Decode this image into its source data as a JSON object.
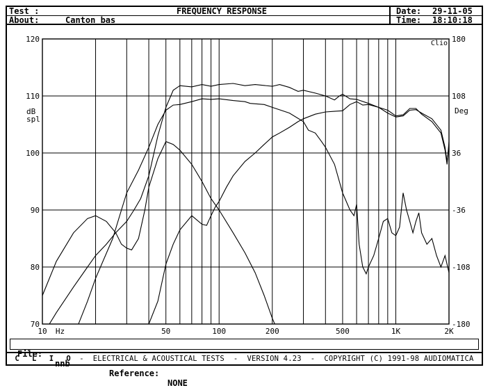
{
  "header": {
    "test_label": "Test :",
    "title": "FREQUENCY RESPONSE",
    "date_label": "Date:",
    "date_value": "29-11-05",
    "about_label": "About:",
    "about_value": "Canton bas",
    "time_label": "Time:",
    "time_value": "18:10:18"
  },
  "file_line": {
    "file_label": "File:",
    "file_value": "nnb",
    "reference_label": "Reference:",
    "reference_value": "NONE"
  },
  "footer": {
    "brand": "C L I O",
    "text": "-  ELECTRICAL & ACOUSTICAL TESTS  -  VERSION 4.23  -  COPYRIGHT (C) 1991-98 AUDIOMATICA"
  },
  "chart_data": {
    "type": "line",
    "corner_label": "Clio",
    "xscale": "log",
    "xlim": [
      10,
      2000
    ],
    "x_ticks": [
      {
        "value": 10,
        "label": "10"
      },
      {
        "value": 12.6,
        "label": "Hz"
      },
      {
        "value": 50,
        "label": "50"
      },
      {
        "value": 100,
        "label": "100"
      },
      {
        "value": 200,
        "label": "200"
      },
      {
        "value": 500,
        "label": "500"
      },
      {
        "value": 1000,
        "label": "1K"
      },
      {
        "value": 2000,
        "label": "2K"
      }
    ],
    "x_gridlines": [
      20,
      30,
      40,
      50,
      60,
      70,
      80,
      90,
      100,
      200,
      300,
      400,
      500,
      600,
      700,
      800,
      900,
      1000,
      2000
    ],
    "ylim": [
      70,
      120
    ],
    "y_ticks": [
      70,
      80,
      90,
      100,
      110,
      120
    ],
    "ylabel": "dB spl",
    "y2lim": [
      -180,
      180
    ],
    "y2_ticks": [
      -180,
      -108,
      -36,
      36,
      108,
      180
    ],
    "y2label": "Deg",
    "grid": true,
    "series": [
      {
        "points": [
          [
            10,
            68
          ],
          [
            12,
            72
          ],
          [
            15,
            76.5
          ],
          [
            18,
            80
          ],
          [
            20,
            82
          ],
          [
            23,
            84
          ],
          [
            26,
            86
          ],
          [
            30,
            88
          ],
          [
            33,
            90
          ],
          [
            36,
            92
          ],
          [
            40,
            96
          ],
          [
            45,
            103
          ],
          [
            50,
            108
          ],
          [
            55,
            111
          ],
          [
            60,
            111.8
          ],
          [
            70,
            111.6
          ],
          [
            80,
            112
          ],
          [
            90,
            111.7
          ],
          [
            100,
            112
          ],
          [
            120,
            112.2
          ],
          [
            140,
            111.8
          ],
          [
            160,
            112
          ],
          [
            200,
            111.7
          ],
          [
            220,
            112
          ],
          [
            250,
            111.5
          ],
          [
            280,
            110.8
          ],
          [
            300,
            111
          ],
          [
            350,
            110.5
          ],
          [
            400,
            110
          ],
          [
            450,
            109.3
          ],
          [
            480,
            110
          ],
          [
            500,
            110.3
          ],
          [
            550,
            109.5
          ],
          [
            600,
            109.4
          ],
          [
            700,
            108.7
          ],
          [
            800,
            108
          ],
          [
            900,
            107
          ],
          [
            1000,
            106.3
          ],
          [
            1100,
            106.5
          ],
          [
            1200,
            107.5
          ],
          [
            1300,
            107.6
          ],
          [
            1400,
            107
          ],
          [
            1600,
            106
          ],
          [
            1800,
            104
          ],
          [
            1900,
            101
          ],
          [
            1950,
            98.5
          ],
          [
            2000,
            101
          ]
        ]
      },
      {
        "points": [
          [
            12,
            60
          ],
          [
            14,
            64
          ],
          [
            16,
            70
          ],
          [
            18,
            74
          ],
          [
            20,
            78
          ],
          [
            25,
            85
          ],
          [
            28,
            90
          ],
          [
            30,
            93
          ],
          [
            35,
            97
          ],
          [
            40,
            101
          ],
          [
            45,
            105
          ],
          [
            50,
            107.5
          ],
          [
            55,
            108.4
          ],
          [
            60,
            108.5
          ],
          [
            70,
            109
          ],
          [
            80,
            109.5
          ],
          [
            90,
            109.4
          ],
          [
            100,
            109.5
          ],
          [
            120,
            109.2
          ],
          [
            140,
            109
          ],
          [
            150,
            108.7
          ],
          [
            180,
            108.5
          ],
          [
            200,
            108
          ],
          [
            250,
            107
          ],
          [
            300,
            105.5
          ],
          [
            320,
            104
          ],
          [
            350,
            103.5
          ],
          [
            380,
            102
          ],
          [
            400,
            101
          ],
          [
            450,
            98
          ],
          [
            500,
            93
          ],
          [
            550,
            90
          ],
          [
            580,
            89
          ],
          [
            600,
            91
          ],
          [
            620,
            84
          ],
          [
            650,
            80
          ],
          [
            680,
            78.8
          ],
          [
            700,
            80
          ],
          [
            750,
            82
          ],
          [
            800,
            85
          ],
          [
            850,
            88
          ],
          [
            900,
            88.5
          ],
          [
            950,
            86
          ],
          [
            1000,
            85.5
          ],
          [
            1050,
            87
          ],
          [
            1100,
            93
          ],
          [
            1150,
            90
          ],
          [
            1200,
            88
          ],
          [
            1250,
            86
          ],
          [
            1300,
            88
          ],
          [
            1350,
            89.5
          ],
          [
            1400,
            86
          ],
          [
            1500,
            84
          ],
          [
            1600,
            85
          ],
          [
            1700,
            82
          ],
          [
            1800,
            80
          ],
          [
            1900,
            82
          ],
          [
            2000,
            79
          ]
        ]
      },
      {
        "points": [
          [
            10,
            75
          ],
          [
            12,
            81
          ],
          [
            15,
            86
          ],
          [
            18,
            88.5
          ],
          [
            20,
            89
          ],
          [
            23,
            88
          ],
          [
            26,
            86
          ],
          [
            28,
            84
          ],
          [
            30,
            83.3
          ],
          [
            32,
            83
          ],
          [
            35,
            85
          ],
          [
            38,
            90
          ],
          [
            40,
            94
          ],
          [
            45,
            99
          ],
          [
            50,
            102
          ],
          [
            55,
            101.5
          ],
          [
            60,
            100.5
          ],
          [
            70,
            98
          ],
          [
            80,
            95
          ],
          [
            90,
            92
          ],
          [
            100,
            90
          ],
          [
            120,
            86
          ],
          [
            140,
            82.5
          ],
          [
            160,
            79
          ],
          [
            180,
            75
          ],
          [
            200,
            71
          ],
          [
            220,
            68
          ]
        ]
      },
      {
        "points": [
          [
            25,
            58
          ],
          [
            30,
            62
          ],
          [
            35,
            66
          ],
          [
            40,
            70
          ],
          [
            45,
            74
          ],
          [
            50,
            80.5
          ],
          [
            55,
            84
          ],
          [
            60,
            86.5
          ],
          [
            70,
            89
          ],
          [
            80,
            87.5
          ],
          [
            85,
            87.3
          ],
          [
            90,
            89
          ],
          [
            95,
            90.5
          ],
          [
            100,
            91.5
          ],
          [
            110,
            94
          ],
          [
            120,
            96
          ],
          [
            140,
            98.5
          ],
          [
            160,
            100
          ],
          [
            180,
            101.5
          ],
          [
            200,
            102.8
          ],
          [
            220,
            103.5
          ],
          [
            250,
            104.5
          ],
          [
            280,
            105.5
          ],
          [
            300,
            106
          ],
          [
            350,
            106.8
          ],
          [
            400,
            107.2
          ],
          [
            450,
            107.3
          ],
          [
            500,
            107.4
          ],
          [
            550,
            108.5
          ],
          [
            600,
            109
          ],
          [
            650,
            108.4
          ],
          [
            700,
            108.5
          ],
          [
            800,
            108
          ],
          [
            900,
            107.5
          ],
          [
            1000,
            106.5
          ],
          [
            1100,
            106.7
          ],
          [
            1200,
            107.8
          ],
          [
            1300,
            107.8
          ],
          [
            1400,
            106.8
          ],
          [
            1600,
            105.5
          ],
          [
            1800,
            103.5
          ],
          [
            1900,
            100.5
          ],
          [
            1950,
            98
          ],
          [
            2000,
            102
          ]
        ]
      }
    ]
  }
}
